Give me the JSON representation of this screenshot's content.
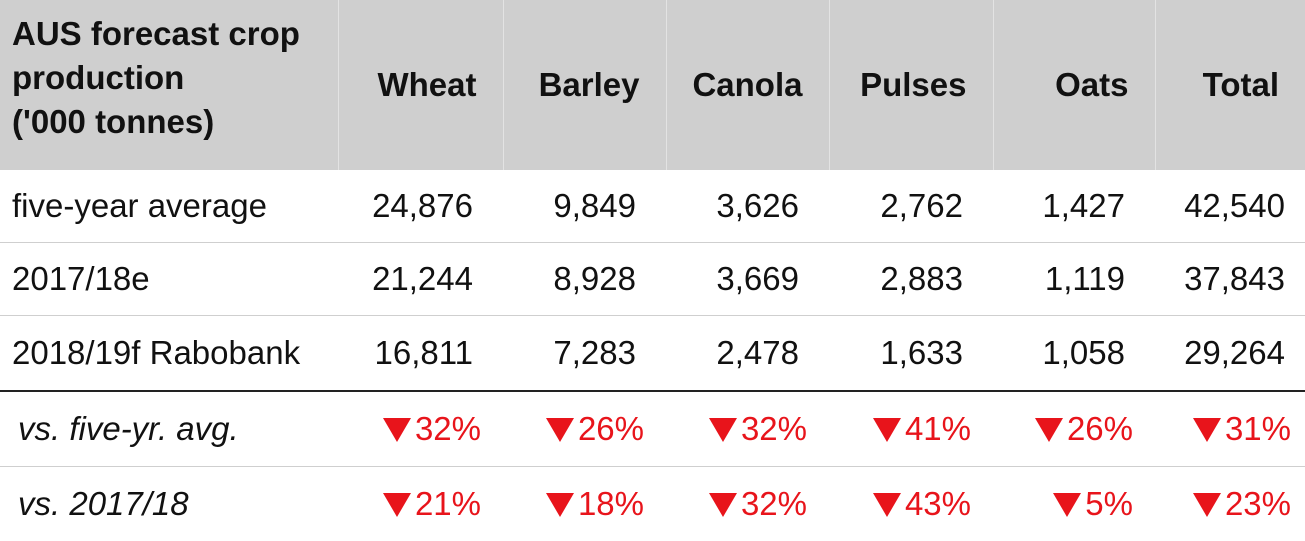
{
  "chart_data": {
    "type": "table",
    "title": "AUS forecast crop production ('000 tonnes)",
    "columns": [
      "Wheat",
      "Barley",
      "Canola",
      "Pulses",
      "Oats",
      "Total"
    ],
    "rows": [
      {
        "label": "five-year average",
        "values": [
          "24,876",
          "9,849",
          "3,626",
          "2,762",
          "1,427",
          "42,540"
        ]
      },
      {
        "label": "2017/18e",
        "values": [
          "21,244",
          "8,928",
          "3,669",
          "2,883",
          "1,119",
          "37,843"
        ]
      },
      {
        "label": "2018/19f Rabobank",
        "values": [
          "16,811",
          "7,283",
          "2,478",
          "1,633",
          "1,058",
          "29,264"
        ]
      }
    ],
    "change_rows": [
      {
        "label": "vs. five-yr. avg.",
        "direction": "down",
        "values": [
          "32%",
          "26%",
          "32%",
          "41%",
          "26%",
          "31%"
        ]
      },
      {
        "label": "vs. 2017/18",
        "direction": "down",
        "values": [
          "21%",
          "18%",
          "32%",
          "43%",
          "5%",
          "23%"
        ]
      }
    ],
    "colors": {
      "header_bg": "#cfcfcf",
      "decrease": "#e8141b",
      "divider": "#222222"
    }
  },
  "header": {
    "title_lines": [
      "AUS forecast crop",
      "production",
      "('000 tonnes)"
    ]
  }
}
